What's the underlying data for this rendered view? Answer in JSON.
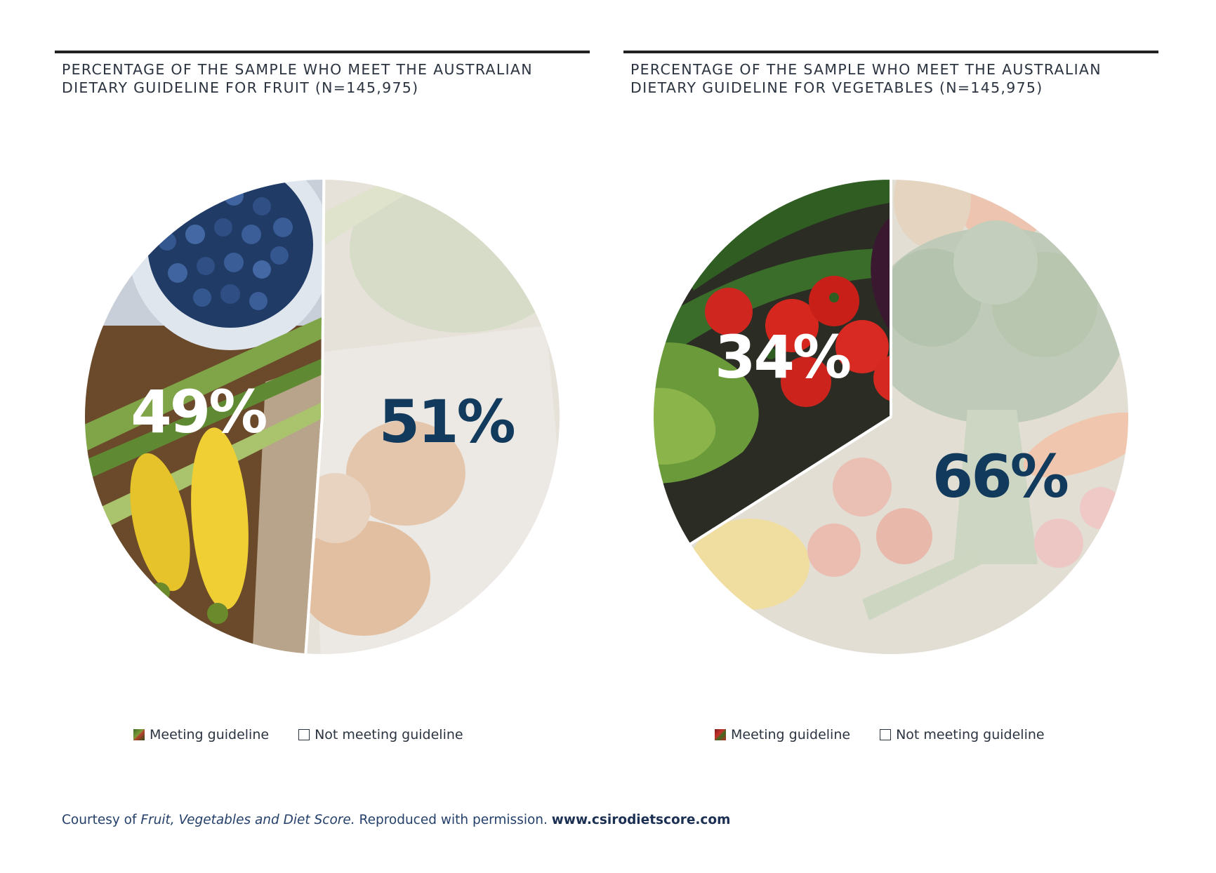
{
  "legend_labels": {
    "meeting": "Meeting guideline",
    "not_meeting": "Not meeting guideline"
  },
  "colors": {
    "meeting_label": "#ffffff",
    "not_meeting_label": "#123a5c",
    "title_text": "#2b3440",
    "footer_text": "#24406a"
  },
  "chart_data": [
    {
      "type": "pie",
      "title": "PERCENTAGE OF THE SAMPLE WHO MEET THE AUSTRALIAN DIETARY GUIDELINE FOR FRUIT (N=145,975)",
      "categories": [
        "Meeting guideline",
        "Not meeting guideline"
      ],
      "values": [
        49,
        51
      ],
      "labels": [
        "49%",
        "51%"
      ],
      "fill": [
        "fruit photo (blueberries, squash, strawberries)",
        "faded produce photo"
      ],
      "legend_position": "bottom"
    },
    {
      "type": "pie",
      "title": "PERCENTAGE OF THE SAMPLE WHO MEET THE AUSTRALIAN DIETARY GUIDELINE FOR VEGETABLES (N=145,975)",
      "categories": [
        "Meeting guideline",
        "Not meeting guideline"
      ],
      "values": [
        34,
        66
      ],
      "labels": [
        "34%",
        "66%"
      ],
      "fill": [
        "vegetable photo (zucchini, eggplant, tomatoes, lettuce)",
        "faded vegetable photo (broccoli, beans, radishes)"
      ],
      "legend_position": "bottom"
    }
  ],
  "footer": {
    "prefix": "Courtesy of ",
    "publication": "Fruit, Vegetables and Diet Score.",
    "middle": " Reproduced with permission. ",
    "url": "www.csirodietscore.com"
  }
}
